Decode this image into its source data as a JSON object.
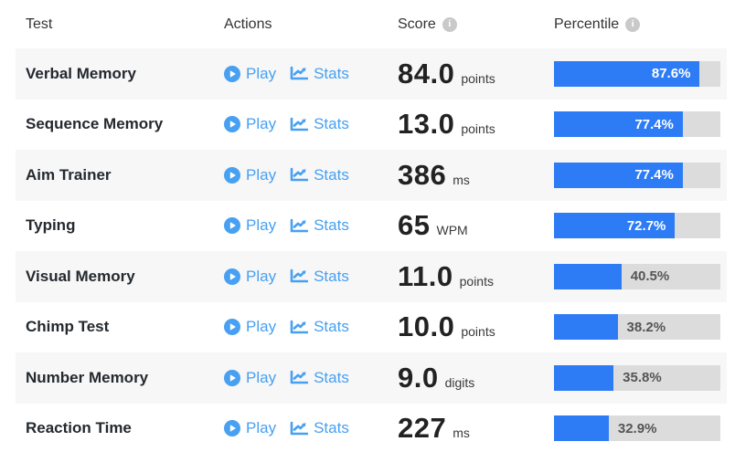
{
  "header": {
    "test": "Test",
    "actions": "Actions",
    "score": "Score",
    "percentile": "Percentile"
  },
  "actions": {
    "play_label": "Play",
    "stats_label": "Stats"
  },
  "colors": {
    "link_blue": "#47a0f1",
    "bar_fill_blue": "#2d7cf6",
    "bar_track_gray": "#dcdcdc",
    "row_stripe": "#f7f7f8",
    "outside_label_gray": "#555555"
  },
  "icons": {
    "play": "play-circle-icon",
    "stats": "line-chart-icon",
    "info": "info-icon"
  },
  "rows": [
    {
      "test": "Verbal Memory",
      "score": "84.0",
      "unit": "points",
      "percentile": 87.6,
      "percent_label": "87.6%"
    },
    {
      "test": "Sequence Memory",
      "score": "13.0",
      "unit": "points",
      "percentile": 77.4,
      "percent_label": "77.4%"
    },
    {
      "test": "Aim Trainer",
      "score": "386",
      "unit": "ms",
      "percentile": 77.4,
      "percent_label": "77.4%"
    },
    {
      "test": "Typing",
      "score": "65",
      "unit": "WPM",
      "percentile": 72.7,
      "percent_label": "72.7%"
    },
    {
      "test": "Visual Memory",
      "score": "11.0",
      "unit": "points",
      "percentile": 40.5,
      "percent_label": "40.5%"
    },
    {
      "test": "Chimp Test",
      "score": "10.0",
      "unit": "points",
      "percentile": 38.2,
      "percent_label": "38.2%"
    },
    {
      "test": "Number Memory",
      "score": "9.0",
      "unit": "digits",
      "percentile": 35.8,
      "percent_label": "35.8%"
    },
    {
      "test": "Reaction Time",
      "score": "227",
      "unit": "ms",
      "percentile": 32.9,
      "percent_label": "32.9%"
    }
  ]
}
